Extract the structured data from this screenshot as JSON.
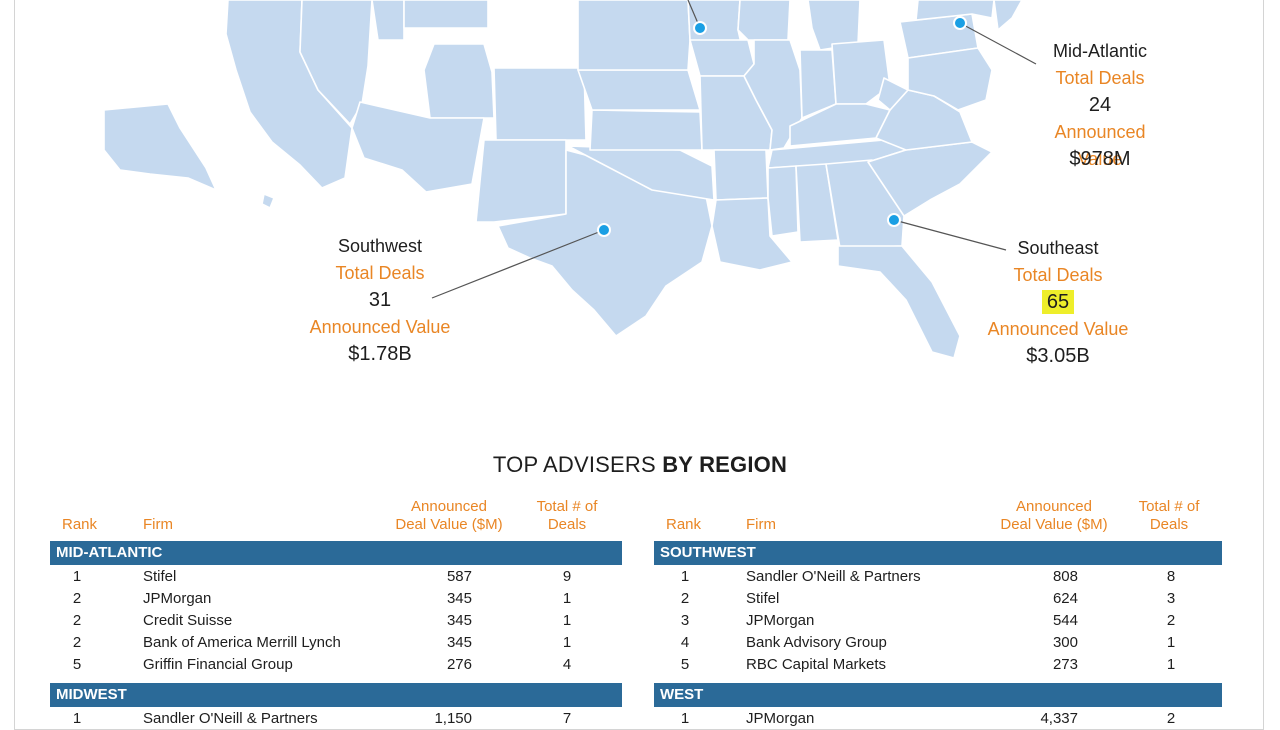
{
  "map": {
    "callouts": [
      {
        "region": "Mid-Atlantic",
        "deals_label": "Total Deals",
        "deals": "24",
        "value_label": "Announced Value",
        "value": "$978M",
        "highlight": false
      },
      {
        "region": "Southwest",
        "deals_label": "Total Deals",
        "deals": "31",
        "value_label": "Announced Value",
        "value": "$1.78B",
        "highlight": false
      },
      {
        "region": "Southeast",
        "deals_label": "Total Deals",
        "deals": "65",
        "value_label": "Announced Value",
        "value": "$3.05B",
        "highlight": true
      }
    ],
    "colors": {
      "land": "#c5d9ef",
      "border": "#ffffff",
      "dot": "#1a9fe4",
      "leader": "#555555"
    }
  },
  "section": {
    "title_plain": "TOP ADVISERS ",
    "title_bold": "BY REGION"
  },
  "tables": {
    "headers": {
      "rank": "Rank",
      "firm": "Firm",
      "value_line1": "Announced",
      "value_line2": "Deal Value ($M)",
      "deals_line1": "Total # of",
      "deals_line2": "Deals"
    },
    "left": [
      {
        "region": "MID-ATLANTIC",
        "rows": [
          {
            "rank": "1",
            "firm": "Stifel",
            "value": "587",
            "deals": "9"
          },
          {
            "rank": "2",
            "firm": "JPMorgan",
            "value": "345",
            "deals": "1"
          },
          {
            "rank": "2",
            "firm": "Credit Suisse",
            "value": "345",
            "deals": "1"
          },
          {
            "rank": "2",
            "firm": "Bank of America Merrill Lynch",
            "value": "345",
            "deals": "1"
          },
          {
            "rank": "5",
            "firm": "Griffin Financial Group",
            "value": "276",
            "deals": "4"
          }
        ]
      },
      {
        "region": "MIDWEST",
        "rows": [
          {
            "rank": "1",
            "firm": "Sandler O'Neill & Partners",
            "value": "1,150",
            "deals": "7"
          }
        ]
      }
    ],
    "right": [
      {
        "region": "SOUTHWEST",
        "rows": [
          {
            "rank": "1",
            "firm": "Sandler O'Neill & Partners",
            "value": "808",
            "deals": "8"
          },
          {
            "rank": "2",
            "firm": "Stifel",
            "value": "624",
            "deals": "3"
          },
          {
            "rank": "3",
            "firm": "JPMorgan",
            "value": "544",
            "deals": "2"
          },
          {
            "rank": "4",
            "firm": "Bank Advisory Group",
            "value": "300",
            "deals": "1"
          },
          {
            "rank": "5",
            "firm": "RBC Capital Markets",
            "value": "273",
            "deals": "1"
          }
        ]
      },
      {
        "region": "WEST",
        "rows": [
          {
            "rank": "1",
            "firm": "JPMorgan",
            "value": "4,337",
            "deals": "2"
          }
        ]
      }
    ]
  }
}
